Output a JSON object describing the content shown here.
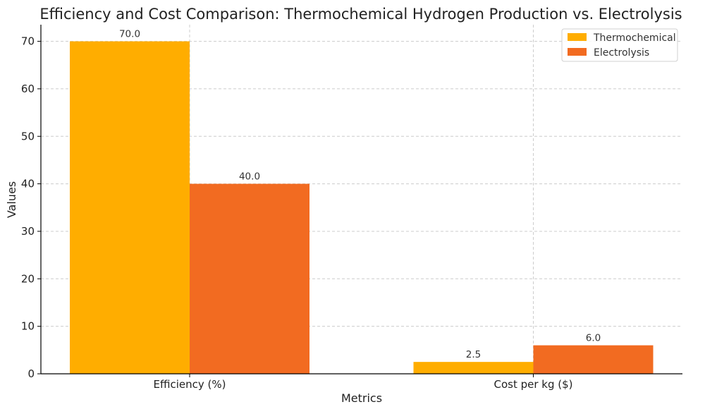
{
  "chart_data": {
    "type": "bar",
    "title": "Efficiency and Cost Comparison: Thermochemical Hydrogen Production vs. Electrolysis",
    "xlabel": "Metrics",
    "ylabel": "Values",
    "categories": [
      "Efficiency (%)",
      "Cost per kg ($)"
    ],
    "series": [
      {
        "name": "Thermochemical",
        "values": [
          70.0,
          2.5
        ],
        "labels": [
          "70.0",
          "2.5"
        ],
        "color": "#FFAD00"
      },
      {
        "name": "Electrolysis",
        "values": [
          40.0,
          6.0
        ],
        "labels": [
          "40.0",
          "6.0"
        ],
        "color": "#F26B21"
      }
    ],
    "ylim": [
      0,
      73.5
    ],
    "yticks": [
      0,
      10,
      20,
      30,
      40,
      50,
      60,
      70
    ],
    "ytick_labels": [
      "0",
      "10",
      "20",
      "30",
      "40",
      "50",
      "60",
      "70"
    ],
    "grid": true,
    "legend": "top-right"
  }
}
